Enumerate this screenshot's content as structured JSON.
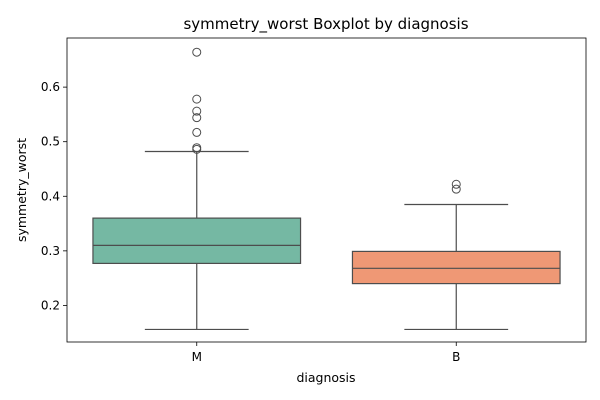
{
  "chart_data": {
    "type": "box",
    "title": "symmetry_worst Boxplot by diagnosis",
    "xlabel": "diagnosis",
    "ylabel": "symmetry_worst",
    "categories": [
      "M",
      "B"
    ],
    "ylim": [
      0.133,
      0.69
    ],
    "yticks": [
      0.2,
      0.3,
      0.4,
      0.5,
      0.6
    ],
    "ytick_labels": [
      "0.2",
      "0.3",
      "0.4",
      "0.5",
      "0.6"
    ],
    "grid": false,
    "boxes": [
      {
        "category": "M",
        "color": "#75b8a3",
        "q1": 0.277,
        "median": 0.31,
        "q3": 0.36,
        "whisker_low": 0.156,
        "whisker_high": 0.482,
        "outliers": [
          0.664,
          0.578,
          0.556,
          0.544,
          0.517,
          0.489,
          0.486
        ]
      },
      {
        "category": "B",
        "color": "#ef9875",
        "q1": 0.24,
        "median": 0.268,
        "q3": 0.299,
        "whisker_low": 0.156,
        "whisker_high": 0.385,
        "outliers": [
          0.422,
          0.413
        ]
      }
    ]
  }
}
